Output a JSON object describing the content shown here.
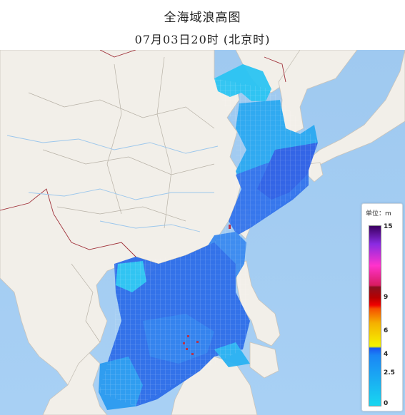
{
  "header": {
    "title": "全海域浪高图",
    "subtitle": "07月03日20时 (北京时)"
  },
  "legend": {
    "unit_label": "单位：m",
    "ticks": [
      "15",
      "9",
      "6",
      "4",
      "2.5",
      "0"
    ]
  },
  "colors": {
    "land": "#f2efe9",
    "sea": "#a9cff2",
    "wave_light": "#2bc4f3",
    "wave_mid": "#3a7ff0",
    "wave_dark": "#2f5ce8"
  },
  "map": {
    "has_grid_overlay": true,
    "wave_scale_max_m": 15
  }
}
